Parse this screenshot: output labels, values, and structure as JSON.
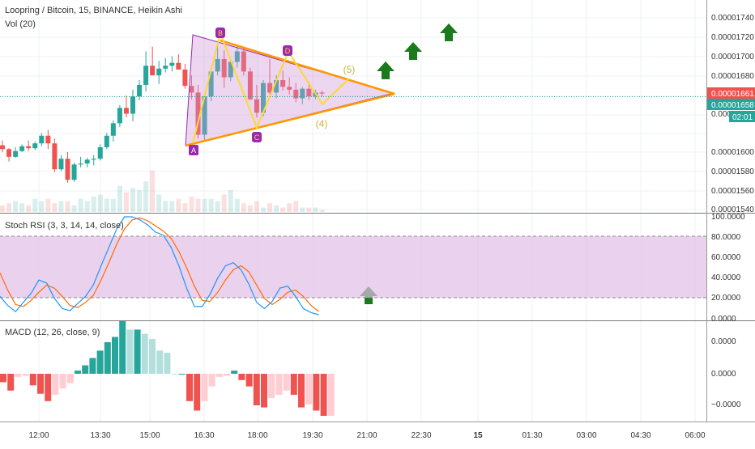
{
  "header": {
    "title": "Loopring / Bitcoin, 15, BINANCE, Heikin Ashi",
    "volume_label": "Vol (20)"
  },
  "price_scale": {
    "ticks": [
      "0.00001740",
      "0.00001720",
      "0.00001700",
      "0.00001680",
      "0.00001661",
      "0.00001658",
      "0.00001620",
      "0.00001600",
      "0.00001580",
      "0.00001560",
      "0.00001540"
    ],
    "last_price": "0.00001661",
    "last_price_color": "#ef5350",
    "prev_price": "0.00001658",
    "prev_price_color": "#26a69a",
    "countdown": "02:01",
    "countdown_color": "#26a69a"
  },
  "stoch_rsi": {
    "label": "Stoch RSI (3, 3, 14, 14, close)",
    "ticks": [
      "100.0000",
      "80.0000",
      "60.0000",
      "40.0000",
      "20.0000",
      "0.0000"
    ],
    "band_color": "#e1bee7"
  },
  "macd": {
    "label": "MACD (12, 26, close, 9)",
    "ticks": [
      "0.0000",
      "0.0000",
      "−0.0000"
    ]
  },
  "time_axis": {
    "ticks": [
      "12:00",
      "13:30",
      "15:00",
      "16:30",
      "18:00",
      "19:30",
      "21:00",
      "22:30",
      "15",
      "01:30",
      "03:00",
      "04:30",
      "06:00"
    ]
  },
  "pattern": {
    "point_labels": [
      "A",
      "B",
      "C",
      "D",
      "E"
    ],
    "wave_labels": [
      "(4)",
      "(5)"
    ],
    "triangle_color": "#ab47bc",
    "wave_color": "#fdd835",
    "trendline_color": "#ff9800"
  },
  "colors": {
    "up": "#26a69a",
    "down": "#ef5350",
    "arrow": "#1b7a1b",
    "rsi_k": "#2196f3",
    "rsi_d": "#ff6d00"
  },
  "chart_data": {
    "type": "candlestick",
    "price_candles": [
      [
        1607,
        1612,
        1600,
        1603
      ],
      [
        1603,
        1604,
        1590,
        1595
      ],
      [
        1595,
        1605,
        1594,
        1601
      ],
      [
        1601,
        1608,
        1600,
        1606
      ],
      [
        1606,
        1612,
        1601,
        1604
      ],
      [
        1604,
        1611,
        1602,
        1609
      ],
      [
        1609,
        1620,
        1606,
        1617
      ],
      [
        1617,
        1623,
        1603,
        1609
      ],
      [
        1609,
        1614,
        1579,
        1582
      ],
      [
        1582,
        1597,
        1580,
        1593
      ],
      [
        1593,
        1600,
        1568,
        1571
      ],
      [
        1571,
        1589,
        1569,
        1587
      ],
      [
        1587,
        1595,
        1584,
        1588
      ],
      [
        1588,
        1594,
        1584,
        1592
      ],
      [
        1592,
        1597,
        1586,
        1593
      ],
      [
        1593,
        1608,
        1591,
        1605
      ],
      [
        1605,
        1620,
        1603,
        1617
      ],
      [
        1617,
        1633,
        1611,
        1630
      ],
      [
        1630,
        1649,
        1626,
        1646
      ],
      [
        1646,
        1659,
        1636,
        1640
      ],
      [
        1640,
        1665,
        1632,
        1658
      ],
      [
        1658,
        1675,
        1654,
        1670
      ],
      [
        1670,
        1705,
        1663,
        1690
      ],
      [
        1690,
        1710,
        1682,
        1680
      ],
      [
        1680,
        1695,
        1671,
        1687
      ],
      [
        1687,
        1698,
        1683,
        1690
      ],
      [
        1690,
        1700,
        1684,
        1693
      ],
      [
        1693,
        1702,
        1687,
        1686
      ],
      [
        1686,
        1692,
        1666,
        1669
      ],
      [
        1669,
        1680,
        1655,
        1662
      ],
      [
        1662,
        1670,
        1614,
        1618
      ],
      [
        1618,
        1660,
        1611,
        1658
      ],
      [
        1658,
        1688,
        1653,
        1684
      ],
      [
        1684,
        1716,
        1680,
        1697
      ],
      [
        1697,
        1706,
        1667,
        1678
      ],
      [
        1678,
        1697,
        1674,
        1694
      ],
      [
        1694,
        1710,
        1688,
        1705
      ],
      [
        1705,
        1709,
        1680,
        1684
      ],
      [
        1684,
        1688,
        1654,
        1655
      ],
      [
        1655,
        1670,
        1636,
        1641
      ],
      [
        1641,
        1675,
        1637,
        1672
      ],
      [
        1672,
        1697,
        1660,
        1662
      ],
      [
        1662,
        1680,
        1656,
        1675
      ],
      [
        1675,
        1685,
        1664,
        1668
      ],
      [
        1668,
        1678,
        1660,
        1665
      ],
      [
        1665,
        1672,
        1652,
        1656
      ],
      [
        1656,
        1668,
        1650,
        1666
      ],
      [
        1666,
        1673,
        1654,
        1658
      ],
      [
        1658,
        1665,
        1655,
        1662
      ],
      [
        1662,
        1664,
        1658,
        1661
      ]
    ],
    "volume": [
      3,
      4,
      5,
      4,
      3,
      6,
      5,
      6,
      4,
      5,
      5,
      3,
      6,
      5,
      7,
      8,
      6,
      6,
      12,
      9,
      11,
      10,
      14,
      19,
      8,
      5,
      5,
      6,
      4,
      7,
      6,
      6,
      6,
      5,
      8,
      10,
      6,
      4,
      3,
      5,
      2,
      4,
      3,
      2,
      4,
      5,
      2,
      2,
      2,
      1
    ],
    "stoch_k": [
      22,
      13,
      7,
      16,
      25,
      38,
      35,
      20,
      10,
      8,
      15,
      22,
      33,
      52,
      70,
      88,
      100,
      100,
      97,
      92,
      85,
      82,
      70,
      52,
      30,
      12,
      12,
      24,
      40,
      52,
      55,
      48,
      34,
      16,
      10,
      17,
      30,
      32,
      22,
      10,
      6,
      4
    ],
    "stoch_d": [
      45,
      28,
      14,
      12,
      18,
      26,
      33,
      30,
      22,
      13,
      11,
      16,
      23,
      38,
      55,
      73,
      88,
      97,
      99,
      96,
      91,
      86,
      79,
      66,
      50,
      32,
      18,
      17,
      26,
      38,
      48,
      52,
      46,
      33,
      20,
      14,
      19,
      26,
      28,
      22,
      13,
      7
    ],
    "macd_hist": [
      -8,
      -16,
      -3,
      -2,
      -11,
      -19,
      -26,
      -20,
      -14,
      -9,
      3,
      8,
      15,
      22,
      30,
      35,
      50,
      42,
      42,
      38,
      33,
      22,
      20,
      0,
      0,
      -26,
      -35,
      -26,
      -12,
      -3,
      -2,
      3,
      -6,
      -12,
      -30,
      -32,
      -23,
      -20,
      -16,
      -20,
      -32,
      -29,
      -35,
      -40,
      -40
    ]
  }
}
